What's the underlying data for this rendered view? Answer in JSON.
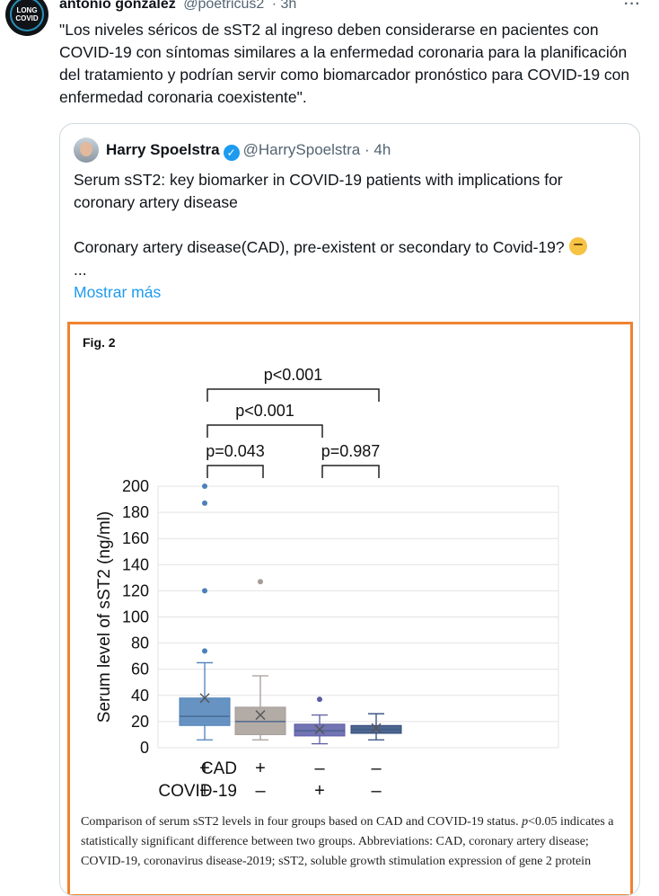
{
  "tweet": {
    "author_name": "antonio gonzalez",
    "handle": "@poetricus2",
    "time": "· 3h",
    "avatar_text": [
      "LONG",
      "COVID"
    ],
    "more_icon": "more-icon",
    "text": "\"Los niveles séricos de sST2 al ingreso deben considerarse en pacientes con COVID-19 con síntomas similares a la enfermedad coronaria para la planificación del tratamiento y podrían servir como biomarcador pronóstico para COVID-19 con enfermedad coronaria coexistente\"."
  },
  "quote": {
    "author_name": "Harry Spoelstra",
    "handle": "@HarrySpoelstra",
    "time": "· 4h",
    "verified": true,
    "paragraph1": "Serum sST2: key biomarker in COVID-19 patients with implications for coronary artery disease",
    "paragraph2": "Coronary artery disease(CAD), pre-existent or secondary to Covid-19?",
    "emoji": "thinking-face",
    "ellipsis": "...",
    "show_more": "Mostrar más"
  },
  "figure": {
    "label": "Fig. 2",
    "caption_before": "Comparison of serum sST2 levels in four groups based on CAD and COVID-19 status. ",
    "caption_italic": "p",
    "caption_after": "<0.05 indicates a statistically significant difference between two groups. Abbreviations: CAD, coronary artery disease; COVID-19, coronavirus disease-2019; sST2, soluble growth stimulation expression of gene 2 protein"
  },
  "colors": {
    "border": "#f0822e",
    "link": "#1d9bf0"
  },
  "chart_data": {
    "type": "box",
    "ylabel": "Serum level of sST2 (ng/ml)",
    "ylim": [
      0,
      200
    ],
    "yticks": [
      0,
      20,
      40,
      60,
      80,
      100,
      120,
      140,
      160,
      180,
      200
    ],
    "grid": true,
    "row_labels": [
      "CAD",
      "COVID-19"
    ],
    "groups": [
      {
        "cad": "+",
        "covid": "+",
        "color": "#4c80b8",
        "whisker_low": 6,
        "q1": 17,
        "median": 24,
        "q3": 38,
        "whisker_high": 65,
        "mean": 38,
        "outliers": [
          74,
          120,
          187,
          200
        ]
      },
      {
        "cad": "+",
        "covid": "–",
        "color": "#a59c97",
        "whisker_low": 6,
        "q1": 10,
        "median": 20,
        "q3": 31,
        "whisker_high": 55,
        "mean": 25,
        "outliers": [
          127
        ]
      },
      {
        "cad": "–",
        "covid": "+",
        "color": "#5b5ca6",
        "whisker_low": 3,
        "q1": 9,
        "median": 13,
        "q3": 18,
        "whisker_high": 25,
        "mean": 14,
        "outliers": [
          37
        ]
      },
      {
        "cad": "–",
        "covid": "–",
        "color": "#2f4a7a",
        "whisker_low": 6,
        "q1": 11,
        "median": 14,
        "q3": 17,
        "whisker_high": 26,
        "mean": 15,
        "outliers": []
      }
    ],
    "comparisons": [
      {
        "from": 0,
        "to": 3,
        "label": "p<0.001"
      },
      {
        "from": 0,
        "to": 2,
        "label": "p<0.001"
      },
      {
        "from": 0,
        "to": 1,
        "label": "p=0.043"
      },
      {
        "from": 2,
        "to": 3,
        "label": "p=0.987"
      }
    ]
  }
}
